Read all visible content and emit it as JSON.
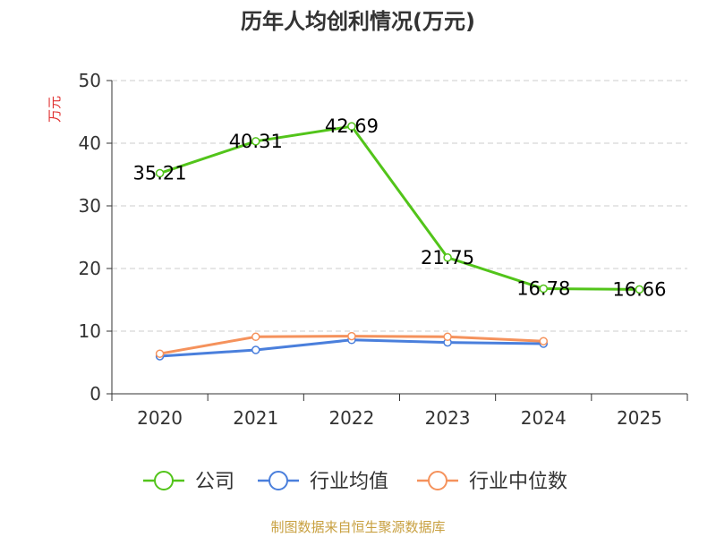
{
  "chart_data": {
    "type": "line",
    "title": "历年人均创利情况(万元)",
    "ylabel": "万元",
    "xlabel": "",
    "categories": [
      "2020",
      "2021",
      "2022",
      "2023",
      "2024",
      "2025"
    ],
    "ylim": [
      0,
      50
    ],
    "yticks": [
      0,
      10,
      20,
      30,
      40,
      50
    ],
    "grid": true,
    "legend_position": "bottom",
    "series": [
      {
        "name": "公司",
        "color": "#52c41a",
        "values": [
          35.21,
          40.31,
          42.69,
          21.75,
          16.78,
          16.66
        ],
        "data_labels": [
          "35.21",
          "40.31",
          "42.69",
          "21.75",
          "16.78",
          "16.66"
        ]
      },
      {
        "name": "行业均值",
        "color": "#4a7fdc",
        "values": [
          6.0,
          7.0,
          8.6,
          8.2,
          8.0,
          null
        ]
      },
      {
        "name": "行业中位数",
        "color": "#f5925c",
        "values": [
          6.4,
          9.1,
          9.2,
          9.1,
          8.4,
          null
        ]
      }
    ]
  },
  "colors": {
    "unit_label": "#e03030",
    "source": "#c8a040",
    "axis": "#333333",
    "grid": "#cccccc"
  },
  "source": "制图数据来自恒生聚源数据库"
}
